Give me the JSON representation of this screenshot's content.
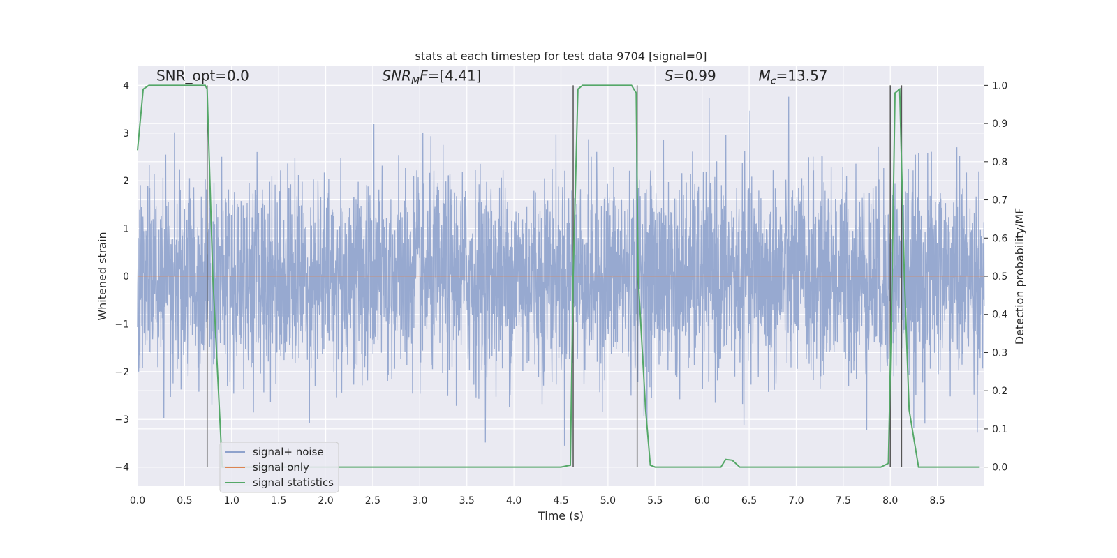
{
  "chart_data": {
    "type": "line",
    "title": "stats at each timestep for test data 9704 [signal=0]",
    "xlabel": "Time (s)",
    "ylabel": "Whitened strain",
    "y2label": "Detection probability/MF",
    "xlim": [
      0,
      9
    ],
    "ylim": [
      -4.4,
      4.4
    ],
    "y2lim": [
      -0.05,
      1.05
    ],
    "xticks": [
      0.0,
      0.5,
      1.0,
      1.5,
      2.0,
      2.5,
      3.0,
      3.5,
      4.0,
      4.5,
      5.0,
      5.5,
      6.0,
      6.5,
      7.0,
      7.5,
      8.0,
      8.5
    ],
    "xtick_labels": [
      "0.0",
      "0.5",
      "1.0",
      "1.5",
      "2.0",
      "2.5",
      "3.0",
      "3.5",
      "4.0",
      "4.5",
      "5.0",
      "5.5",
      "6.0",
      "6.5",
      "7.0",
      "7.5",
      "8.0",
      "8.5"
    ],
    "yticks": [
      -4,
      -3,
      -2,
      -1,
      0,
      1,
      2,
      3,
      4
    ],
    "ytick_labels": [
      "−4",
      "−3",
      "−2",
      "−1",
      "0",
      "1",
      "2",
      "3",
      "4"
    ],
    "y2ticks": [
      0.0,
      0.1,
      0.2,
      0.3,
      0.4,
      0.5,
      0.6,
      0.7,
      0.8,
      0.9,
      1.0
    ],
    "y2tick_labels": [
      "0.0",
      "0.1",
      "0.2",
      "0.3",
      "0.4",
      "0.5",
      "0.6",
      "0.7",
      "0.8",
      "0.9",
      "1.0"
    ],
    "grid": true,
    "legend_position": "lower-left",
    "annotations": [
      {
        "prefix": "SNR_opt=",
        "value": "0.0",
        "x": 0.2,
        "y": 4.1
      },
      {
        "prefix": "SNR",
        "subscript": "M",
        "suffix": "F=",
        "value": "[4.41]",
        "x": 2.6,
        "y": 4.1,
        "italic": true
      },
      {
        "prefix": "S",
        "suffix": "=",
        "value": "0.99",
        "x": 5.6,
        "y": 4.1,
        "italic": true
      },
      {
        "prefix": "M",
        "subscript": "c",
        "suffix": "=",
        "value": "13.57",
        "x": 6.6,
        "y": 4.1,
        "italic": true
      }
    ],
    "series": [
      {
        "name": "signal+ noise",
        "color": "#8ea2cc",
        "axis": "left",
        "noise_envelope": {
          "samples": 3600,
          "duration": 9.0,
          "typical_abs_max": 2.6,
          "peak_abs_max": 3.9
        }
      },
      {
        "name": "signal only",
        "color": "#dd8452",
        "axis": "left",
        "x": [
          0.0,
          9.0
        ],
        "y": [
          0.0,
          0.0
        ]
      },
      {
        "name": "signal statistics",
        "color": "#55a868",
        "axis": "right",
        "x": [
          0.0,
          0.06,
          0.12,
          0.55,
          0.72,
          0.74,
          0.8,
          0.9,
          4.5,
          4.6,
          4.63,
          4.68,
          4.73,
          5.25,
          5.3,
          5.32,
          5.4,
          5.45,
          5.5,
          6.2,
          6.25,
          6.32,
          6.4,
          7.9,
          7.98,
          8.02,
          8.05,
          8.1,
          8.15,
          8.2,
          8.3,
          8.95
        ],
        "y": [
          0.83,
          0.99,
          1.0,
          1.0,
          1.0,
          0.99,
          0.5,
          0.0,
          0.0,
          0.005,
          0.5,
          0.99,
          1.0,
          1.0,
          0.98,
          0.5,
          0.15,
          0.005,
          0.0,
          0.0,
          0.02,
          0.018,
          0.0,
          0.0,
          0.01,
          0.5,
          0.98,
          0.99,
          0.5,
          0.15,
          0.0,
          0.0
        ]
      }
    ],
    "vlines": [
      {
        "x": 0.74,
        "ymin": -4.0,
        "ymax": 4.0,
        "color": "#555555"
      },
      {
        "x": 4.63,
        "ymin": -4.0,
        "ymax": 4.0,
        "color": "#555555"
      },
      {
        "x": 5.31,
        "ymin": -4.0,
        "ymax": 4.0,
        "color": "#555555"
      },
      {
        "x": 8.0,
        "ymin": -4.0,
        "ymax": 4.0,
        "color": "#555555"
      },
      {
        "x": 8.12,
        "ymin": -4.0,
        "ymax": 4.0,
        "color": "#555555"
      }
    ]
  },
  "legend": {
    "items": [
      {
        "label": "signal+ noise",
        "color": "#8ea2cc"
      },
      {
        "label": "signal only",
        "color": "#dd8452"
      },
      {
        "label": "signal statistics",
        "color": "#55a868"
      }
    ]
  },
  "colors": {
    "plot_background": "#eaeaf2",
    "grid": "#ffffff"
  }
}
